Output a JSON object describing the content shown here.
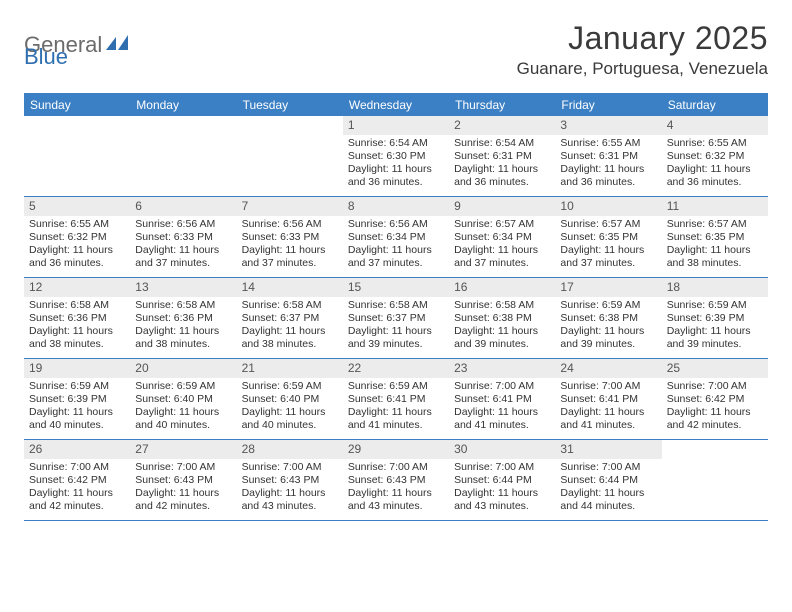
{
  "logo": {
    "part1": "General",
    "part2": "Blue"
  },
  "title": "January 2025",
  "location": "Guanare, Portuguesa, Venezuela",
  "colors": {
    "header_bg": "#3b7fc4",
    "header_text": "#ffffff",
    "daynum_bg": "#ececec",
    "text": "#333333",
    "logo_gray": "#6b6b6b",
    "logo_blue": "#2f6fb0"
  },
  "dayHeaders": [
    "Sunday",
    "Monday",
    "Tuesday",
    "Wednesday",
    "Thursday",
    "Friday",
    "Saturday"
  ],
  "weeks": [
    [
      {
        "blank": true
      },
      {
        "blank": true
      },
      {
        "blank": true
      },
      {
        "n": "1",
        "sunrise": "6:54 AM",
        "sunset": "6:30 PM",
        "daylight": "11 hours and 36 minutes."
      },
      {
        "n": "2",
        "sunrise": "6:54 AM",
        "sunset": "6:31 PM",
        "daylight": "11 hours and 36 minutes."
      },
      {
        "n": "3",
        "sunrise": "6:55 AM",
        "sunset": "6:31 PM",
        "daylight": "11 hours and 36 minutes."
      },
      {
        "n": "4",
        "sunrise": "6:55 AM",
        "sunset": "6:32 PM",
        "daylight": "11 hours and 36 minutes."
      }
    ],
    [
      {
        "n": "5",
        "sunrise": "6:55 AM",
        "sunset": "6:32 PM",
        "daylight": "11 hours and 36 minutes."
      },
      {
        "n": "6",
        "sunrise": "6:56 AM",
        "sunset": "6:33 PM",
        "daylight": "11 hours and 37 minutes."
      },
      {
        "n": "7",
        "sunrise": "6:56 AM",
        "sunset": "6:33 PM",
        "daylight": "11 hours and 37 minutes."
      },
      {
        "n": "8",
        "sunrise": "6:56 AM",
        "sunset": "6:34 PM",
        "daylight": "11 hours and 37 minutes."
      },
      {
        "n": "9",
        "sunrise": "6:57 AM",
        "sunset": "6:34 PM",
        "daylight": "11 hours and 37 minutes."
      },
      {
        "n": "10",
        "sunrise": "6:57 AM",
        "sunset": "6:35 PM",
        "daylight": "11 hours and 37 minutes."
      },
      {
        "n": "11",
        "sunrise": "6:57 AM",
        "sunset": "6:35 PM",
        "daylight": "11 hours and 38 minutes."
      }
    ],
    [
      {
        "n": "12",
        "sunrise": "6:58 AM",
        "sunset": "6:36 PM",
        "daylight": "11 hours and 38 minutes."
      },
      {
        "n": "13",
        "sunrise": "6:58 AM",
        "sunset": "6:36 PM",
        "daylight": "11 hours and 38 minutes."
      },
      {
        "n": "14",
        "sunrise": "6:58 AM",
        "sunset": "6:37 PM",
        "daylight": "11 hours and 38 minutes."
      },
      {
        "n": "15",
        "sunrise": "6:58 AM",
        "sunset": "6:37 PM",
        "daylight": "11 hours and 39 minutes."
      },
      {
        "n": "16",
        "sunrise": "6:58 AM",
        "sunset": "6:38 PM",
        "daylight": "11 hours and 39 minutes."
      },
      {
        "n": "17",
        "sunrise": "6:59 AM",
        "sunset": "6:38 PM",
        "daylight": "11 hours and 39 minutes."
      },
      {
        "n": "18",
        "sunrise": "6:59 AM",
        "sunset": "6:39 PM",
        "daylight": "11 hours and 39 minutes."
      }
    ],
    [
      {
        "n": "19",
        "sunrise": "6:59 AM",
        "sunset": "6:39 PM",
        "daylight": "11 hours and 40 minutes."
      },
      {
        "n": "20",
        "sunrise": "6:59 AM",
        "sunset": "6:40 PM",
        "daylight": "11 hours and 40 minutes."
      },
      {
        "n": "21",
        "sunrise": "6:59 AM",
        "sunset": "6:40 PM",
        "daylight": "11 hours and 40 minutes."
      },
      {
        "n": "22",
        "sunrise": "6:59 AM",
        "sunset": "6:41 PM",
        "daylight": "11 hours and 41 minutes."
      },
      {
        "n": "23",
        "sunrise": "7:00 AM",
        "sunset": "6:41 PM",
        "daylight": "11 hours and 41 minutes."
      },
      {
        "n": "24",
        "sunrise": "7:00 AM",
        "sunset": "6:41 PM",
        "daylight": "11 hours and 41 minutes."
      },
      {
        "n": "25",
        "sunrise": "7:00 AM",
        "sunset": "6:42 PM",
        "daylight": "11 hours and 42 minutes."
      }
    ],
    [
      {
        "n": "26",
        "sunrise": "7:00 AM",
        "sunset": "6:42 PM",
        "daylight": "11 hours and 42 minutes."
      },
      {
        "n": "27",
        "sunrise": "7:00 AM",
        "sunset": "6:43 PM",
        "daylight": "11 hours and 42 minutes."
      },
      {
        "n": "28",
        "sunrise": "7:00 AM",
        "sunset": "6:43 PM",
        "daylight": "11 hours and 43 minutes."
      },
      {
        "n": "29",
        "sunrise": "7:00 AM",
        "sunset": "6:43 PM",
        "daylight": "11 hours and 43 minutes."
      },
      {
        "n": "30",
        "sunrise": "7:00 AM",
        "sunset": "6:44 PM",
        "daylight": "11 hours and 43 minutes."
      },
      {
        "n": "31",
        "sunrise": "7:00 AM",
        "sunset": "6:44 PM",
        "daylight": "11 hours and 44 minutes."
      },
      {
        "blank": true
      }
    ]
  ],
  "labels": {
    "sunrise": "Sunrise: ",
    "sunset": "Sunset: ",
    "daylight": "Daylight: "
  }
}
